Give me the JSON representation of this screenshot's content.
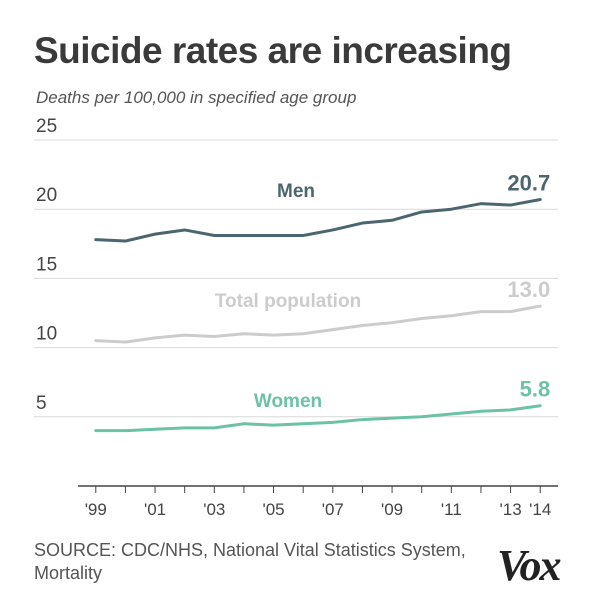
{
  "header": {
    "title": "Suicide rates are increasing",
    "subtitle": "Deaths per 100,000 in specified age group"
  },
  "footer": {
    "source": "SOURCE: CDC/NHS, National Vital Statistics System, Mortality",
    "logo": "Vox"
  },
  "colors": {
    "men": "#4c6670",
    "total": "#cccccc",
    "women": "#6cc2a4",
    "grid": "#d9d9d9",
    "axis": "#444444",
    "tick_text": "#444444"
  },
  "chart_data": {
    "type": "line",
    "title": "Suicide rates are increasing",
    "subtitle": "Deaths per 100,000 in specified age group",
    "xlabel": "",
    "ylabel": "",
    "x": [
      1999,
      2000,
      2001,
      2002,
      2003,
      2004,
      2005,
      2006,
      2007,
      2008,
      2009,
      2010,
      2011,
      2012,
      2013,
      2014
    ],
    "x_tick_labels": [
      {
        "x": 1999,
        "label": "'99"
      },
      {
        "x": 2001,
        "label": "'01"
      },
      {
        "x": 2003,
        "label": "'03"
      },
      {
        "x": 2005,
        "label": "'05"
      },
      {
        "x": 2007,
        "label": "'07"
      },
      {
        "x": 2009,
        "label": "'09"
      },
      {
        "x": 2011,
        "label": "'11"
      },
      {
        "x": 2013,
        "label": "'13"
      },
      {
        "x": 2014,
        "label": "'14"
      }
    ],
    "xlim": [
      1998.4,
      2014.6
    ],
    "ylim": [
      0,
      25
    ],
    "yticks": [
      5,
      10,
      15,
      20,
      25
    ],
    "grid": true,
    "series": [
      {
        "name": "Men",
        "key": "men",
        "values": [
          17.8,
          17.7,
          18.2,
          18.5,
          18.1,
          18.1,
          18.1,
          18.1,
          18.5,
          19.0,
          19.2,
          19.8,
          20.0,
          20.4,
          20.3,
          20.7
        ],
        "end_label": "20.7"
      },
      {
        "name": "Total population",
        "key": "total",
        "values": [
          10.5,
          10.4,
          10.7,
          10.9,
          10.8,
          11.0,
          10.9,
          11.0,
          11.3,
          11.6,
          11.8,
          12.1,
          12.3,
          12.6,
          12.6,
          13.0
        ],
        "end_label": "13.0"
      },
      {
        "name": "Women",
        "key": "women",
        "values": [
          4.0,
          4.0,
          4.1,
          4.2,
          4.2,
          4.5,
          4.4,
          4.5,
          4.6,
          4.8,
          4.9,
          5.0,
          5.2,
          5.4,
          5.5,
          5.8
        ],
        "end_label": "5.8"
      }
    ]
  }
}
